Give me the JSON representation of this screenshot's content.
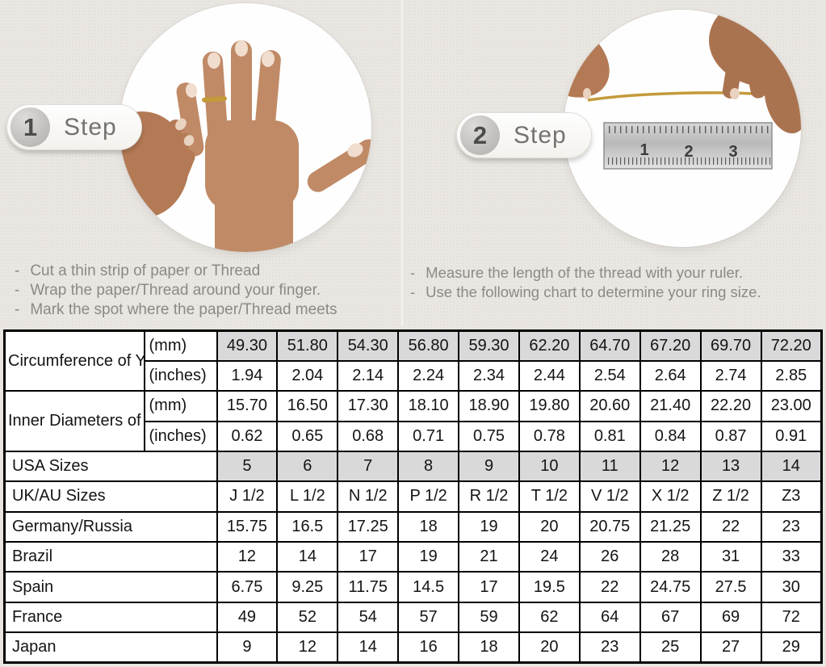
{
  "steps": [
    {
      "number": "1",
      "label": "Step",
      "instructions": [
        "Cut a thin strip of paper or Thread",
        "Wrap the paper/Thread around your finger.",
        "Mark the spot where the paper/Thread meets"
      ],
      "image": "hand-with-thread-wrapped-around-ring-finger"
    },
    {
      "number": "2",
      "label": "Step",
      "instructions": [
        "Measure the length of the thread with your ruler.",
        "Use the following chart to determine your ring size."
      ],
      "image": "hands-holding-thread-over-ruler",
      "ruler_numbers": [
        "1",
        "2",
        "3"
      ]
    }
  ],
  "table": {
    "groups": [
      {
        "label": "Circumference of Your Finger",
        "rows": [
          {
            "unit": "(mm)",
            "highlight": true,
            "values": [
              "49.30",
              "51.80",
              "54.30",
              "56.80",
              "59.30",
              "62.20",
              "64.70",
              "67.20",
              "69.70",
              "72.20"
            ]
          },
          {
            "unit": "(inches)",
            "highlight": false,
            "values": [
              "1.94",
              "2.04",
              "2.14",
              "2.24",
              "2.34",
              "2.44",
              "2.54",
              "2.64",
              "2.74",
              "2.85"
            ]
          }
        ]
      },
      {
        "label": "Inner Diameters of Rings",
        "rows": [
          {
            "unit": "(mm)",
            "highlight": false,
            "values": [
              "15.70",
              "16.50",
              "17.30",
              "18.10",
              "18.90",
              "19.80",
              "20.60",
              "21.40",
              "22.20",
              "23.00"
            ]
          },
          {
            "unit": "(inches)",
            "highlight": false,
            "values": [
              "0.62",
              "0.65",
              "0.68",
              "0.71",
              "0.75",
              "0.78",
              "0.81",
              "0.84",
              "0.87",
              "0.91"
            ]
          }
        ]
      }
    ],
    "size_rows": [
      {
        "label": "USA Sizes",
        "highlight": true,
        "values": [
          "5",
          "6",
          "7",
          "8",
          "9",
          "10",
          "11",
          "12",
          "13",
          "14"
        ]
      },
      {
        "label": "UK/AU Sizes",
        "highlight": false,
        "values": [
          "J 1/2",
          "L 1/2",
          "N 1/2",
          "P 1/2",
          "R 1/2",
          "T 1/2",
          "V 1/2",
          "X 1/2",
          "Z 1/2",
          "Z3"
        ]
      },
      {
        "label": "Germany/Russia",
        "highlight": false,
        "values": [
          "15.75",
          "16.5",
          "17.25",
          "18",
          "19",
          "20",
          "20.75",
          "21.25",
          "22",
          "23"
        ]
      },
      {
        "label": "Brazil",
        "highlight": false,
        "values": [
          "12",
          "14",
          "17",
          "19",
          "21",
          "24",
          "26",
          "28",
          "31",
          "33"
        ]
      },
      {
        "label": "Spain",
        "highlight": false,
        "values": [
          "6.75",
          "9.25",
          "11.75",
          "14.5",
          "17",
          "19.5",
          "22",
          "24.75",
          "27.5",
          "30"
        ]
      },
      {
        "label": "France",
        "highlight": false,
        "values": [
          "49",
          "52",
          "54",
          "57",
          "59",
          "62",
          "64",
          "67",
          "69",
          "72"
        ]
      },
      {
        "label": "Japan",
        "highlight": false,
        "values": [
          "9",
          "12",
          "14",
          "16",
          "18",
          "20",
          "23",
          "25",
          "27",
          "29"
        ]
      }
    ]
  },
  "colors": {
    "page_bg": "#eae7e2",
    "cell_highlight": "#d9d9d9",
    "table_border": "#000000",
    "muted_text": "#8b8a84",
    "thread_gold": "#c49a3a"
  }
}
